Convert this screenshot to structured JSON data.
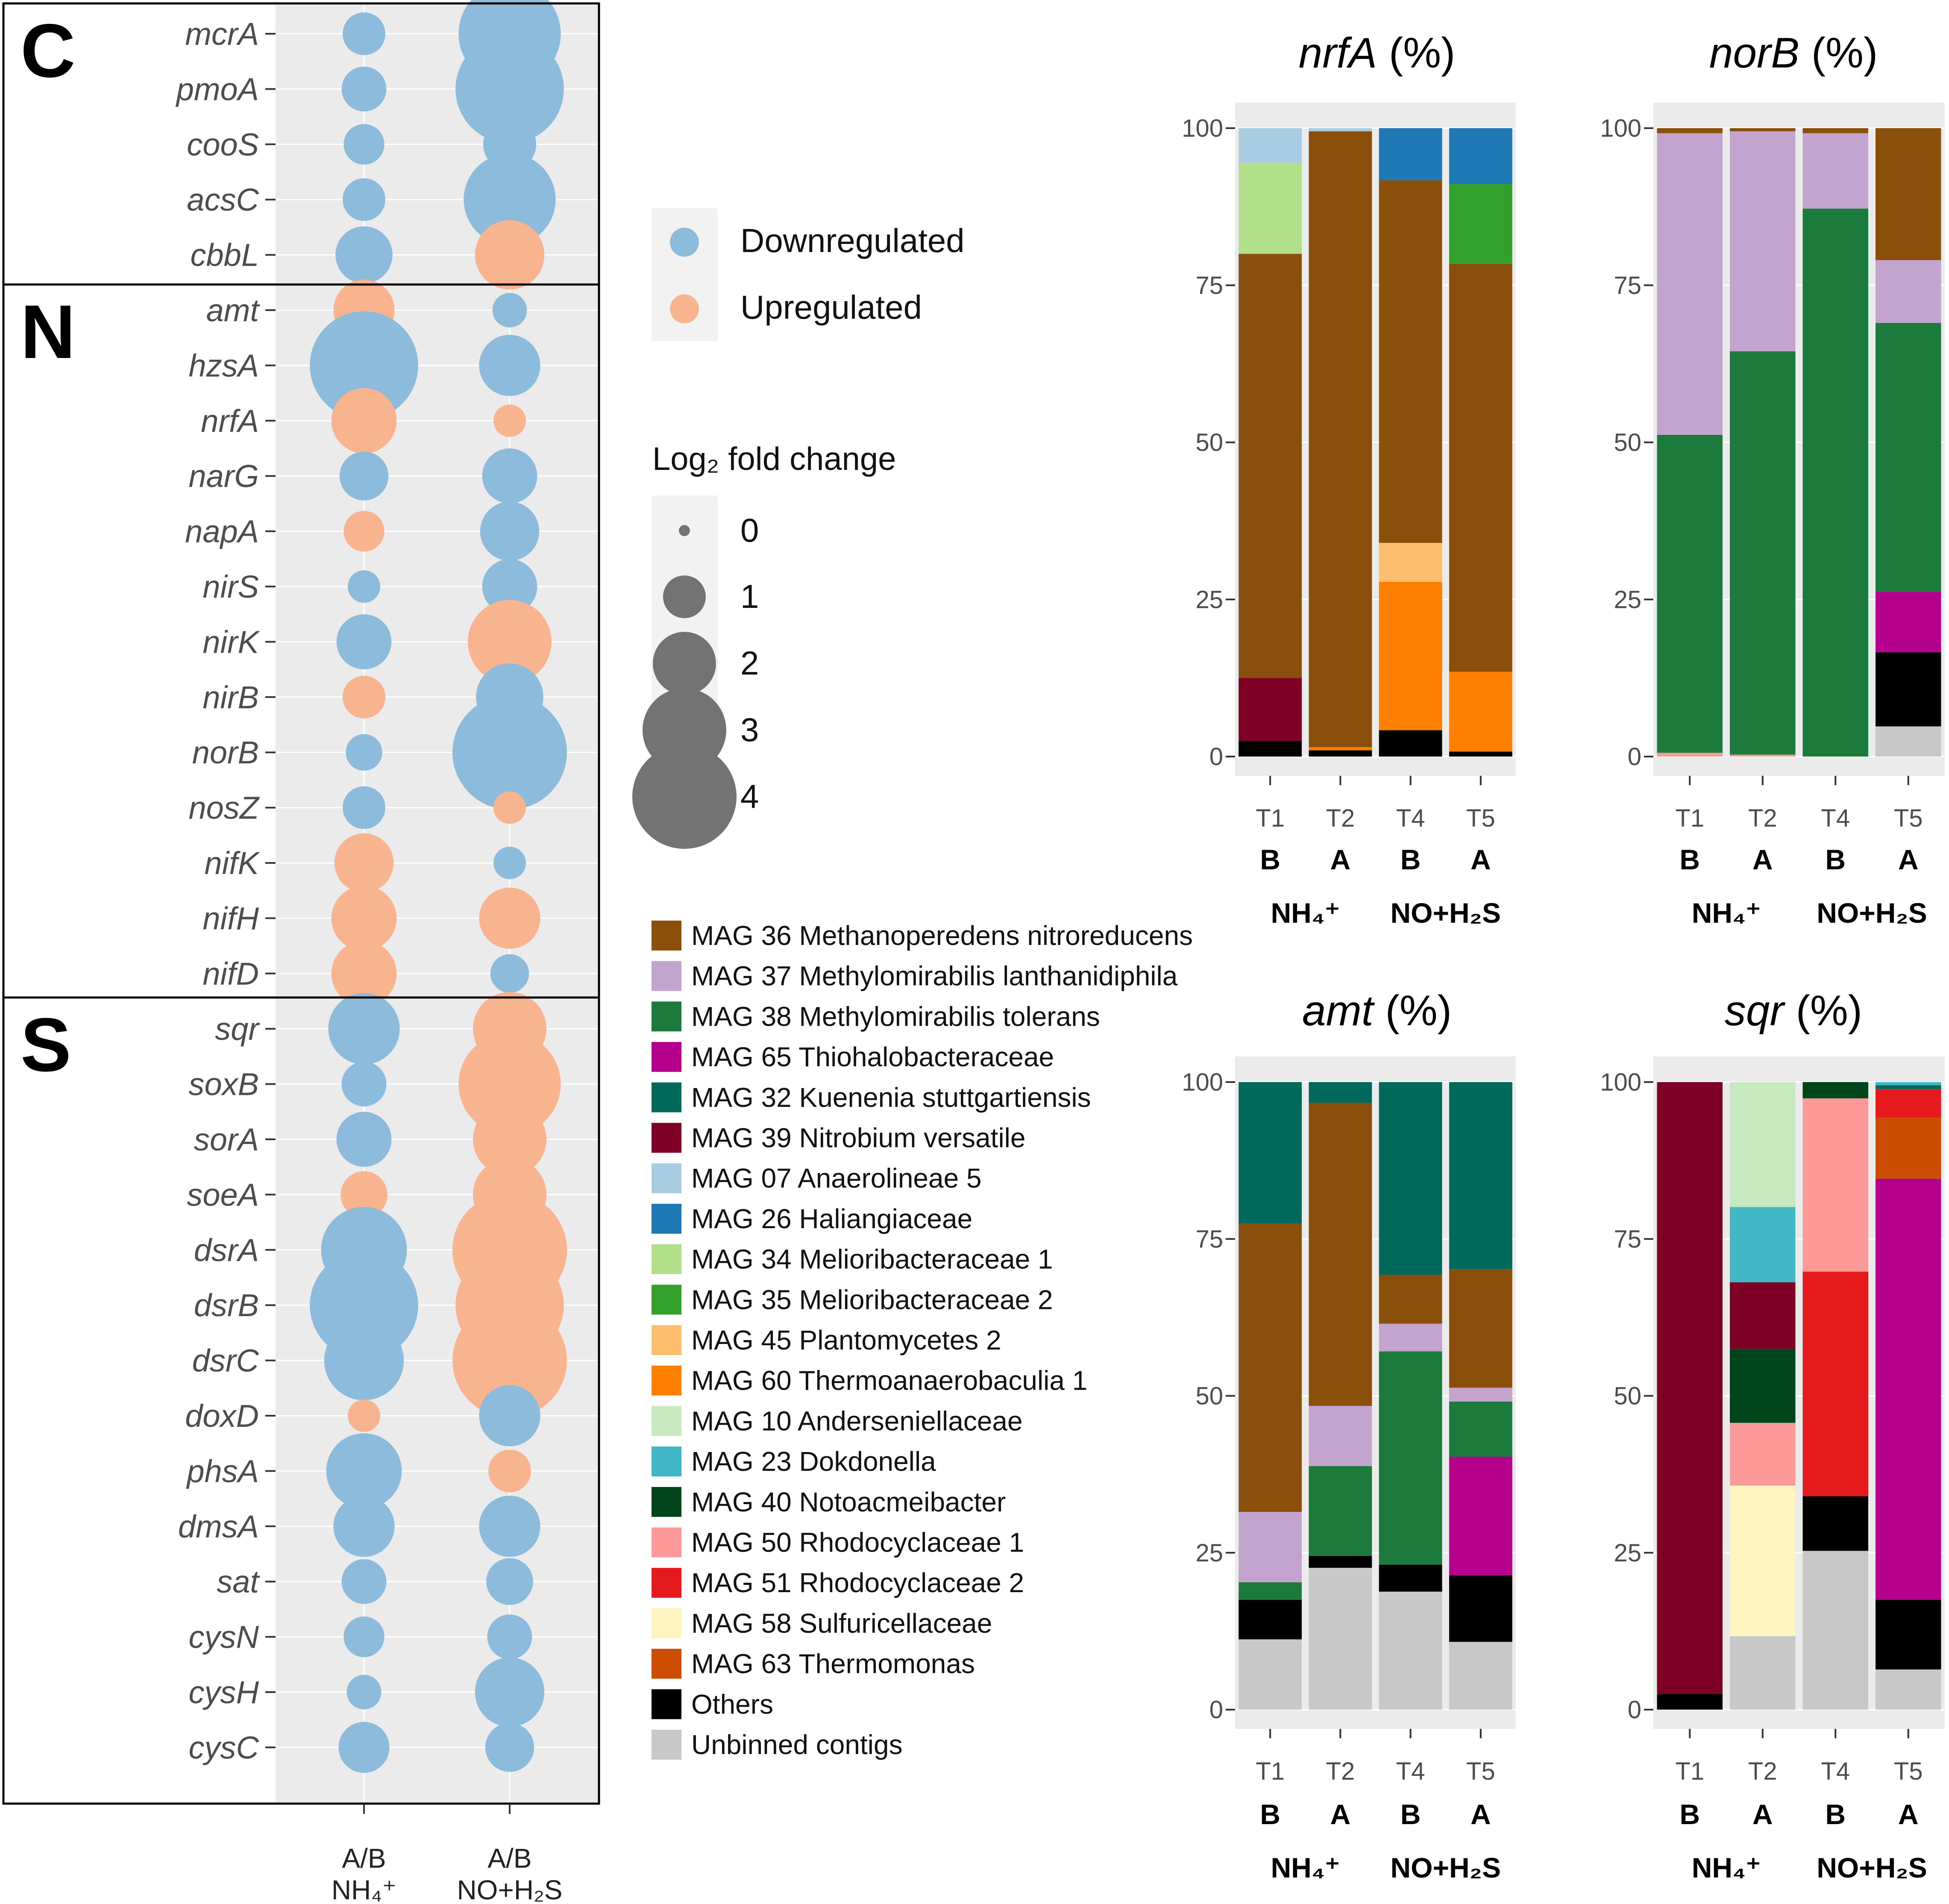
{
  "chart_data": [
    {
      "type": "scatter",
      "title": "",
      "xcategories": [
        "A/B NH4+",
        "A/B NO+H2S"
      ],
      "xlabels": [
        [
          "A/B",
          "NH₄⁺"
        ],
        [
          "A/B",
          "NO+H₂S"
        ]
      ],
      "colors": {
        "Downregulated": "#8dbbdb",
        "Upregulated": "#f7b48e"
      },
      "groups": [
        {
          "label": "C",
          "genes": [
            "mcrA",
            "pmoA",
            "cooS",
            "acsC",
            "cbbL"
          ]
        },
        {
          "label": "N",
          "genes": [
            "amt",
            "hzsA",
            "nrfA",
            "narG",
            "napA",
            "nirS",
            "nirK",
            "nirB",
            "norB",
            "nosZ",
            "nifK",
            "nifH",
            "nifD"
          ]
        },
        {
          "label": "S",
          "genes": [
            "sqr",
            "soxB",
            "sorA",
            "soeA",
            "dsrA",
            "dsrB",
            "dsrC",
            "doxD",
            "phsA",
            "dmsA",
            "sat",
            "cysN",
            "cysH",
            "cysC"
          ]
        }
      ],
      "points": [
        {
          "gene": "mcrA",
          "nh4": {
            "size": 1.0,
            "dir": "down"
          },
          "noh2s": {
            "size": 3.9,
            "dir": "down"
          }
        },
        {
          "gene": "pmoA",
          "nh4": {
            "size": 1.1,
            "dir": "down"
          },
          "noh2s": {
            "size": 4.2,
            "dir": "down"
          }
        },
        {
          "gene": "cooS",
          "nh4": {
            "size": 0.9,
            "dir": "down"
          },
          "noh2s": {
            "size": 1.5,
            "dir": "down"
          }
        },
        {
          "gene": "acsC",
          "nh4": {
            "size": 1.0,
            "dir": "down"
          },
          "noh2s": {
            "size": 3.4,
            "dir": "down"
          }
        },
        {
          "gene": "cbbL",
          "nh4": {
            "size": 1.7,
            "dir": "down"
          },
          "noh2s": {
            "size": 2.3,
            "dir": "up"
          }
        },
        {
          "gene": "amt",
          "nh4": {
            "size": 1.9,
            "dir": "up"
          },
          "noh2s": {
            "size": 0.6,
            "dir": "down"
          }
        },
        {
          "gene": "hzsA",
          "nh4": {
            "size": 4.2,
            "dir": "down"
          },
          "noh2s": {
            "size": 1.9,
            "dir": "down"
          }
        },
        {
          "gene": "nrfA",
          "nh4": {
            "size": 2.1,
            "dir": "up"
          },
          "noh2s": {
            "size": 0.5,
            "dir": "up"
          }
        },
        {
          "gene": "narG",
          "nh4": {
            "size": 1.3,
            "dir": "down"
          },
          "noh2s": {
            "size": 1.6,
            "dir": "down"
          }
        },
        {
          "gene": "napA",
          "nh4": {
            "size": 0.9,
            "dir": "up"
          },
          "noh2s": {
            "size": 1.8,
            "dir": "down"
          }
        },
        {
          "gene": "nirS",
          "nh4": {
            "size": 0.5,
            "dir": "down"
          },
          "noh2s": {
            "size": 1.6,
            "dir": "down"
          }
        },
        {
          "gene": "nirK",
          "nh4": {
            "size": 1.6,
            "dir": "down"
          },
          "noh2s": {
            "size": 3.0,
            "dir": "up"
          }
        },
        {
          "gene": "nirB",
          "nh4": {
            "size": 1.0,
            "dir": "up"
          },
          "noh2s": {
            "size": 2.2,
            "dir": "down"
          }
        },
        {
          "gene": "norB",
          "nh4": {
            "size": 0.7,
            "dir": "down"
          },
          "noh2s": {
            "size": 4.5,
            "dir": "down"
          }
        },
        {
          "gene": "nosZ",
          "nh4": {
            "size": 1.0,
            "dir": "down"
          },
          "noh2s": {
            "size": 0.5,
            "dir": "up"
          }
        },
        {
          "gene": "nifK",
          "nh4": {
            "size": 1.8,
            "dir": "up"
          },
          "noh2s": {
            "size": 0.5,
            "dir": "down"
          }
        },
        {
          "gene": "nifH",
          "nh4": {
            "size": 2.1,
            "dir": "up"
          },
          "noh2s": {
            "size": 1.9,
            "dir": "up"
          }
        },
        {
          "gene": "nifD",
          "nh4": {
            "size": 2.1,
            "dir": "up"
          },
          "noh2s": {
            "size": 0.8,
            "dir": "down"
          }
        },
        {
          "gene": "sqr",
          "nh4": {
            "size": 2.4,
            "dir": "down"
          },
          "noh2s": {
            "size": 2.5,
            "dir": "up"
          }
        },
        {
          "gene": "soxB",
          "nh4": {
            "size": 1.1,
            "dir": "down"
          },
          "noh2s": {
            "size": 3.9,
            "dir": "up"
          }
        },
        {
          "gene": "sorA",
          "nh4": {
            "size": 1.6,
            "dir": "down"
          },
          "noh2s": {
            "size": 2.5,
            "dir": "up"
          }
        },
        {
          "gene": "soeA",
          "nh4": {
            "size": 1.2,
            "dir": "up"
          },
          "noh2s": {
            "size": 2.5,
            "dir": "up"
          }
        },
        {
          "gene": "dsrA",
          "nh4": {
            "size": 3.1,
            "dir": "down"
          },
          "noh2s": {
            "size": 4.5,
            "dir": "up"
          }
        },
        {
          "gene": "dsrB",
          "nh4": {
            "size": 4.2,
            "dir": "down"
          },
          "noh2s": {
            "size": 4.2,
            "dir": "up"
          }
        },
        {
          "gene": "dsrC",
          "nh4": {
            "size": 2.8,
            "dir": "down"
          },
          "noh2s": {
            "size": 4.5,
            "dir": "up"
          }
        },
        {
          "gene": "doxD",
          "nh4": {
            "size": 0.5,
            "dir": "up"
          },
          "noh2s": {
            "size": 1.9,
            "dir": "down"
          }
        },
        {
          "gene": "phsA",
          "nh4": {
            "size": 2.6,
            "dir": "down"
          },
          "noh2s": {
            "size": 1.0,
            "dir": "up"
          }
        },
        {
          "gene": "dmsA",
          "nh4": {
            "size": 1.9,
            "dir": "down"
          },
          "noh2s": {
            "size": 1.9,
            "dir": "down"
          }
        },
        {
          "gene": "sat",
          "nh4": {
            "size": 1.1,
            "dir": "down"
          },
          "noh2s": {
            "size": 1.2,
            "dir": "down"
          }
        },
        {
          "gene": "cysN",
          "nh4": {
            "size": 0.9,
            "dir": "down"
          },
          "noh2s": {
            "size": 1.1,
            "dir": "down"
          }
        },
        {
          "gene": "cysH",
          "nh4": {
            "size": 0.6,
            "dir": "down"
          },
          "noh2s": {
            "size": 2.3,
            "dir": "down"
          }
        },
        {
          "gene": "cysC",
          "nh4": {
            "size": 1.4,
            "dir": "down"
          },
          "noh2s": {
            "size": 1.3,
            "dir": "down"
          }
        }
      ],
      "legend_direction": {
        "down_label": "Downregulated",
        "up_label": "Upregulated"
      },
      "legend_size": {
        "title": "Log₂ fold change",
        "values": [
          0,
          1,
          2,
          3,
          4
        ],
        "labels": [
          "0",
          "1",
          "2",
          "3",
          "4"
        ]
      }
    },
    {
      "type": "bar",
      "title": "nrfA (%)",
      "title_gene": "nrfA",
      "title_unit": " (%)",
      "categories": [
        "T1",
        "T2",
        "T4",
        "T5"
      ],
      "group_letters": [
        "B",
        "A",
        "B",
        "A"
      ],
      "treatments": [
        "NH₄⁺",
        "NO+H₂S"
      ],
      "ylim": [
        0,
        100
      ],
      "yticks": [
        0,
        25,
        50,
        75,
        100
      ],
      "ytick_labels": [
        "0",
        "25",
        "50",
        "75",
        "100"
      ],
      "stacks": [
        [
          {
            "t": "Others",
            "v": 2.5
          },
          {
            "t": "MAG39",
            "v": 10
          },
          {
            "t": "MAG36",
            "v": 67.5
          },
          {
            "t": "MAG34",
            "v": 14.5
          },
          {
            "t": "MAG07",
            "v": 5.5
          }
        ],
        [
          {
            "t": "Others",
            "v": 1
          },
          {
            "t": "MAG60",
            "v": 0.5
          },
          {
            "t": "MAG36",
            "v": 98
          },
          {
            "t": "MAG07",
            "v": 0.5
          }
        ],
        [
          {
            "t": "Others",
            "v": 4.2
          },
          {
            "t": "MAG60",
            "v": 23.6
          },
          {
            "t": "MAG45",
            "v": 6.2
          },
          {
            "t": "MAG36",
            "v": 57.7
          },
          {
            "t": "MAG26",
            "v": 8.3
          }
        ],
        [
          {
            "t": "Others",
            "v": 0.8
          },
          {
            "t": "MAG60",
            "v": 12.7
          },
          {
            "t": "MAG36",
            "v": 64.9
          },
          {
            "t": "MAG35",
            "v": 12.7
          },
          {
            "t": "MAG26",
            "v": 8.9
          }
        ]
      ]
    },
    {
      "type": "bar",
      "title": "norB (%)",
      "title_gene": "norB",
      "title_unit": " (%)",
      "categories": [
        "T1",
        "T2",
        "T4",
        "T5"
      ],
      "group_letters": [
        "B",
        "A",
        "B",
        "A"
      ],
      "treatments": [
        "NH₄⁺",
        "NO+H₂S"
      ],
      "ylim": [
        0,
        100
      ],
      "yticks": [
        0,
        25,
        50,
        75,
        100
      ],
      "ytick_labels": [
        "0",
        "25",
        "50",
        "75",
        "100"
      ],
      "stacks": [
        [
          {
            "t": "MAG50",
            "v": 0.6
          },
          {
            "t": "MAG38",
            "v": 50.6
          },
          {
            "t": "MAG37",
            "v": 48
          },
          {
            "t": "MAG36",
            "v": 0.8
          }
        ],
        [
          {
            "t": "MAG50",
            "v": 0.3
          },
          {
            "t": "MAG38",
            "v": 64.2
          },
          {
            "t": "MAG37",
            "v": 35
          },
          {
            "t": "MAG36",
            "v": 0.5
          }
        ],
        [
          {
            "t": "MAG38",
            "v": 87.2
          },
          {
            "t": "MAG37",
            "v": 12
          },
          {
            "t": "MAG36",
            "v": 0.8
          }
        ],
        [
          {
            "t": "Unbinned",
            "v": 4.8
          },
          {
            "t": "Others",
            "v": 11.8
          },
          {
            "t": "MAG65",
            "v": 9.6
          },
          {
            "t": "MAG38",
            "v": 42.8
          },
          {
            "t": "MAG37",
            "v": 10
          },
          {
            "t": "MAG36",
            "v": 21
          }
        ]
      ]
    },
    {
      "type": "bar",
      "title": "amt (%)",
      "title_gene": "amt",
      "title_unit": " (%)",
      "categories": [
        "T1",
        "T2",
        "T4",
        "T5"
      ],
      "group_letters": [
        "B",
        "A",
        "B",
        "A"
      ],
      "treatments": [
        "NH₄⁺",
        "NO+H₂S"
      ],
      "ylim": [
        0,
        100
      ],
      "yticks": [
        0,
        25,
        50,
        75,
        100
      ],
      "ytick_labels": [
        "0",
        "25",
        "50",
        "75",
        "100"
      ],
      "stacks": [
        [
          {
            "t": "Unbinned",
            "v": 11.2
          },
          {
            "t": "Others",
            "v": 6.3
          },
          {
            "t": "MAG38",
            "v": 2.8
          },
          {
            "t": "MAG37",
            "v": 11.2
          },
          {
            "t": "MAG36",
            "v": 46
          },
          {
            "t": "MAG32",
            "v": 22.5
          }
        ],
        [
          {
            "t": "Unbinned",
            "v": 22.6
          },
          {
            "t": "Others",
            "v": 1.9
          },
          {
            "t": "MAG38",
            "v": 14.3
          },
          {
            "t": "MAG37",
            "v": 9.6
          },
          {
            "t": "MAG36",
            "v": 48.3
          },
          {
            "t": "MAG32",
            "v": 3.3
          }
        ],
        [
          {
            "t": "Unbinned",
            "v": 18.8
          },
          {
            "t": "Others",
            "v": 4.3
          },
          {
            "t": "MAG38",
            "v": 34
          },
          {
            "t": "MAG37",
            "v": 4.4
          },
          {
            "t": "MAG36",
            "v": 7.8
          },
          {
            "t": "MAG32",
            "v": 30.7
          }
        ],
        [
          {
            "t": "Unbinned",
            "v": 10.8
          },
          {
            "t": "Others",
            "v": 10.6
          },
          {
            "t": "MAG65",
            "v": 18.9
          },
          {
            "t": "MAG38",
            "v": 8.8
          },
          {
            "t": "MAG37",
            "v": 2.2
          },
          {
            "t": "MAG36",
            "v": 18.9
          },
          {
            "t": "MAG32",
            "v": 29.8
          }
        ]
      ]
    },
    {
      "type": "bar",
      "title": "sqr (%)",
      "title_gene": "sqr",
      "title_unit": " (%)",
      "categories": [
        "T1",
        "T2",
        "T4",
        "T5"
      ],
      "group_letters": [
        "B",
        "A",
        "B",
        "A"
      ],
      "treatments": [
        "NH₄⁺",
        "NO+H₂S"
      ],
      "ylim": [
        0,
        100
      ],
      "yticks": [
        0,
        25,
        50,
        75,
        100
      ],
      "ytick_labels": [
        "0",
        "25",
        "50",
        "75",
        "100"
      ],
      "stacks": [
        [
          {
            "t": "Others",
            "v": 2.5
          },
          {
            "t": "MAG39",
            "v": 97.5
          }
        ],
        [
          {
            "t": "Unbinned",
            "v": 11.7
          },
          {
            "t": "MAG58",
            "v": 24
          },
          {
            "t": "MAG50",
            "v": 10
          },
          {
            "t": "MAG40",
            "v": 11.8
          },
          {
            "t": "MAG39",
            "v": 10.6
          },
          {
            "t": "MAG23",
            "v": 12
          },
          {
            "t": "MAG10",
            "v": 19.9
          }
        ],
        [
          {
            "t": "Unbinned",
            "v": 25.3
          },
          {
            "t": "Others",
            "v": 8.7
          },
          {
            "t": "MAG51",
            "v": 35.8
          },
          {
            "t": "MAG50",
            "v": 27.6
          },
          {
            "t": "MAG40",
            "v": 2.6
          }
        ],
        [
          {
            "t": "Unbinned",
            "v": 6.4
          },
          {
            "t": "Others",
            "v": 11.1
          },
          {
            "t": "MAG65",
            "v": 67.1
          },
          {
            "t": "MAG63",
            "v": 9.7
          },
          {
            "t": "MAG51",
            "v": 4.6
          },
          {
            "t": "MAG32",
            "v": 0.6
          },
          {
            "t": "MAG23",
            "v": 0.5
          }
        ]
      ]
    }
  ],
  "taxa_legend": [
    {
      "key": "MAG36",
      "label": "MAG 36 Methanoperedens nitroreducens",
      "color": "#8b4f0c"
    },
    {
      "key": "MAG37",
      "label": "MAG 37 Methylomirabilis lanthanidiphila",
      "color": "#c3a4cf"
    },
    {
      "key": "MAG38",
      "label": "MAG 38 Methylomirabilis tolerans",
      "color": "#1b7a3c"
    },
    {
      "key": "MAG65",
      "label": "MAG 65 Thiohalobacteraceae",
      "color": "#b5008d"
    },
    {
      "key": "MAG32",
      "label": "MAG 32 Kuenenia stuttgartiensis",
      "color": "#00695c"
    },
    {
      "key": "MAG39",
      "label": "MAG 39 Nitrobium versatile",
      "color": "#7f0026"
    },
    {
      "key": "MAG07",
      "label": "MAG 07 Anaerolineae 5",
      "color": "#a8cce2"
    },
    {
      "key": "MAG26",
      "label": "MAG 26 Haliangiaceae",
      "color": "#1f78b4"
    },
    {
      "key": "MAG34",
      "label": "MAG 34 Melioribacteraceae 1",
      "color": "#b2df8a"
    },
    {
      "key": "MAG35",
      "label": "MAG 35 Melioribacteraceae 2",
      "color": "#33a02c"
    },
    {
      "key": "MAG45",
      "label": "MAG 45 Plantomycetes 2",
      "color": "#fdbf6f"
    },
    {
      "key": "MAG60",
      "label": "MAG 60 Thermoanaerobaculia 1",
      "color": "#ff7f00"
    },
    {
      "key": "MAG10",
      "label": "MAG 10 Anderseniellaceae",
      "color": "#c7e9c0"
    },
    {
      "key": "MAG23",
      "label": "MAG 23 Dokdonella",
      "color": "#41b6c4"
    },
    {
      "key": "MAG40",
      "label": "MAG 40 Notoacmeibacter",
      "color": "#00441b"
    },
    {
      "key": "MAG50",
      "label": "MAG 50 Rhodocyclaceae 1",
      "color": "#fb9a99"
    },
    {
      "key": "MAG51",
      "label": "MAG 51 Rhodocyclaceae 2",
      "color": "#e41a1c"
    },
    {
      "key": "MAG58",
      "label": "MAG 58 Sulfuricellaceae",
      "color": "#fff5c0"
    },
    {
      "key": "MAG63",
      "label": "MAG 63 Thermomonas",
      "color": "#cc4c02"
    },
    {
      "key": "Others",
      "label": "Others",
      "color": "#000000"
    },
    {
      "key": "Unbinned",
      "label": "Unbinned contigs",
      "color": "#c8c8c8"
    }
  ]
}
